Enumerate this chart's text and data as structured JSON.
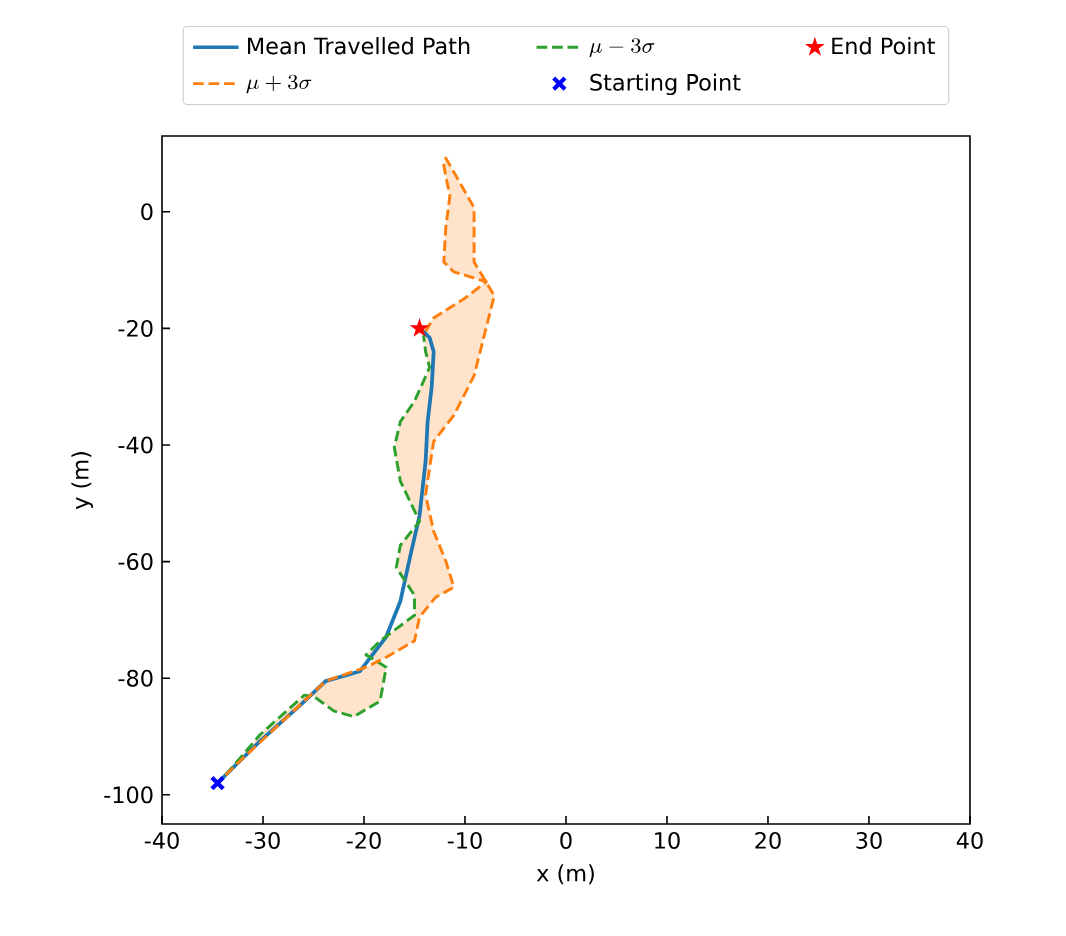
{
  "chart_data": {
    "type": "line",
    "xlabel": "x (m)",
    "ylabel": "y (m)",
    "xlim": [
      -40,
      40
    ],
    "ylim": [
      -105,
      13
    ],
    "xticks": [
      -40,
      -30,
      -20,
      -10,
      0,
      10,
      20,
      30,
      40
    ],
    "yticks": [
      -100,
      -80,
      -60,
      -40,
      -20,
      0
    ],
    "grid": false,
    "legend": "top",
    "series": [
      {
        "name": "Mean Travelled Path",
        "color": "#1f77b4",
        "line_style": "solid",
        "marker": "none",
        "x": [
          -34.5,
          -33.7,
          -30.3,
          -26.3,
          -23.8,
          -20.4,
          -17.8,
          -16.4,
          -15.4,
          -14.5,
          -13.9,
          -13.7,
          -13.3,
          -13.1,
          -13.5,
          -14.3
        ],
        "values": [
          -98,
          -96.6,
          -90.8,
          -84.6,
          -80.5,
          -78.8,
          -72.9,
          -66.8,
          -58.9,
          -52.1,
          -42.8,
          -36,
          -30.1,
          -24,
          -21.6,
          -20.2
        ]
      },
      {
        "name": "\\mu-3\\sigma",
        "color": "#2ca02c",
        "line_style": "dashed",
        "marker": "none",
        "x": [
          -33.7,
          -30.3,
          -25.9,
          -24.9,
          -23.0,
          -21.0,
          -18.4,
          -17.8,
          -19.8,
          -18.4,
          -15.0,
          -15.0,
          -16.8,
          -16.4,
          -14.5,
          -16.4,
          -17.0,
          -16.4,
          -15.0,
          -13.5,
          -13.9,
          -14.1
        ],
        "values": [
          -96.6,
          -89.7,
          -82.9,
          -83.2,
          -85.6,
          -86.6,
          -83.9,
          -78.1,
          -76.0,
          -73.6,
          -69.2,
          -65.8,
          -61.0,
          -57.2,
          -53.1,
          -46.2,
          -40.4,
          -36.0,
          -32.5,
          -26.7,
          -24.0,
          -21.2
        ]
      },
      {
        "name": "End Point",
        "type": "scatter",
        "color": "#ff0000",
        "marker": "star",
        "x": [
          -14.5
        ],
        "values": [
          -20
        ]
      },
      {
        "name": "\\mu+3\\sigma",
        "color": "#ff7f0e",
        "line_style": "dashed",
        "marker": "none",
        "x": [
          -33.7,
          -32.9,
          -23.8,
          -19.8,
          -17.8,
          -15.0,
          -14.5,
          -12.9,
          -11.1,
          -11.9,
          -13.1,
          -13.9,
          -13.5,
          -13.1,
          -11.1,
          -9.1,
          -7.1,
          -9.1,
          -9.1,
          -10.9,
          -11.9,
          -12.1,
          -11.5,
          -11.9,
          -12.1,
          -11.1,
          -7.9,
          -9.9,
          -13.1,
          -13.9
        ],
        "values": [
          -96.6,
          -95.2,
          -80.5,
          -78.1,
          -76.4,
          -73.6,
          -69.5,
          -66.1,
          -64.4,
          -59.9,
          -54.8,
          -48.6,
          -43.8,
          -39.4,
          -34.9,
          -28.1,
          -14.4,
          -8.6,
          0.7,
          6.2,
          9.2,
          7.9,
          2.7,
          -2.7,
          -8.6,
          -10.3,
          -12,
          -14.7,
          -18.2,
          -20.5
        ]
      },
      {
        "name": "Starting Point",
        "type": "scatter",
        "color": "#0000ff",
        "marker": "cross",
        "x": [
          -34.5
        ],
        "values": [
          -98
        ]
      }
    ]
  }
}
